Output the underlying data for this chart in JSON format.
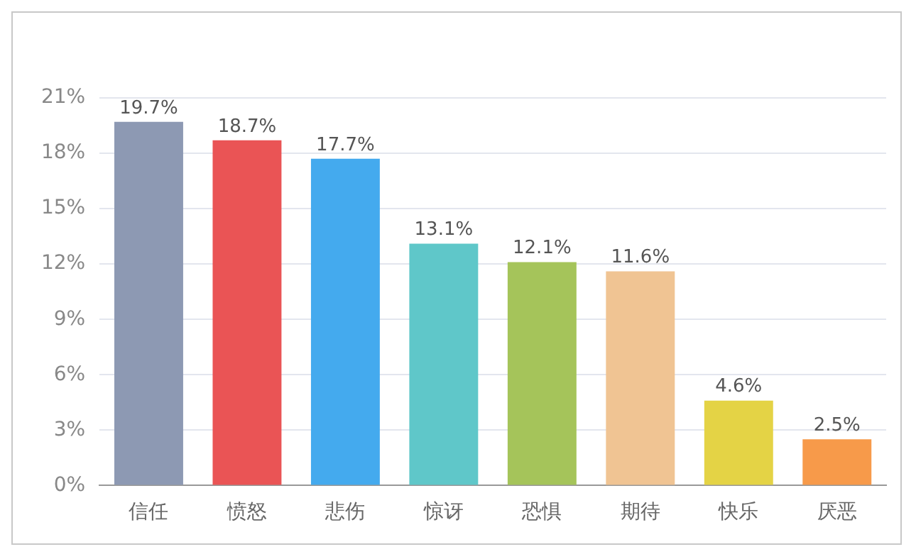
{
  "chart_data": {
    "type": "bar",
    "categories": [
      "信任",
      "愤怒",
      "悲伤",
      "惊讶",
      "恐惧",
      "期待",
      "快乐",
      "厌恶"
    ],
    "values": [
      19.7,
      18.7,
      17.7,
      13.1,
      12.1,
      11.6,
      4.6,
      2.5
    ],
    "colors": [
      "#8d99b3",
      "#ea5455",
      "#44aaee",
      "#5fc7c9",
      "#a5c45a",
      "#f0c493",
      "#e4d345",
      "#f79a4a"
    ],
    "value_labels": [
      "19.7%",
      "18.7%",
      "17.7%",
      "13.1%",
      "12.1%",
      "11.6%",
      "4.6%",
      "2.5%"
    ],
    "ylim": [
      0,
      21
    ],
    "yticks": [
      {
        "value": 0,
        "label": "0%"
      },
      {
        "value": 3,
        "label": "3%"
      },
      {
        "value": 6,
        "label": "6%"
      },
      {
        "value": 9,
        "label": "9%"
      },
      {
        "value": 12,
        "label": "12%"
      },
      {
        "value": 15,
        "label": "15%"
      },
      {
        "value": 18,
        "label": "18%"
      },
      {
        "value": 21,
        "label": "21%"
      }
    ],
    "grid": "y"
  }
}
